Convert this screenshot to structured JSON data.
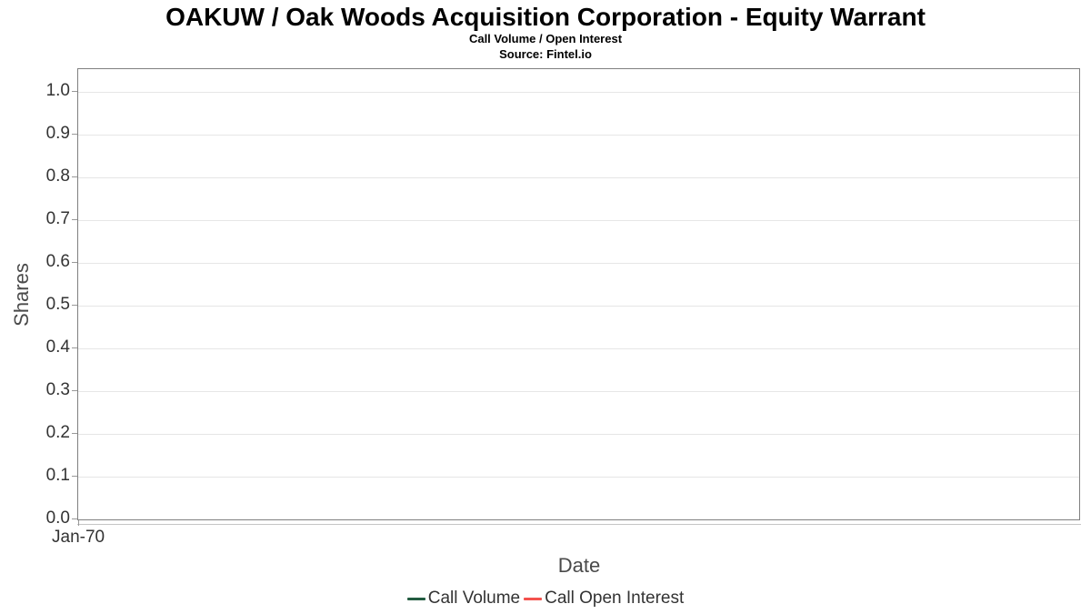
{
  "header": {
    "title": "OAKUW / Oak Woods Acquisition Corporation - Equity Warrant",
    "subtitle": "Call Volume / Open Interest",
    "source": "Source: Fintel.io"
  },
  "chart_data": {
    "type": "line",
    "title": "OAKUW / Oak Woods Acquisition Corporation - Equity Warrant",
    "subtitle": "Call Volume / Open Interest",
    "source": "Source: Fintel.io",
    "xlabel": "Date",
    "ylabel": "Shares",
    "x": [],
    "series": [
      {
        "name": "Call Volume",
        "color": "#235c41",
        "values": []
      },
      {
        "name": "Call Open Interest",
        "color": "#f4524d",
        "values": []
      }
    ],
    "ylim": [
      0.0,
      1.054
    ],
    "yticks": [
      {
        "v": 0.0,
        "label": "0.0"
      },
      {
        "v": 0.1,
        "label": "0.1"
      },
      {
        "v": 0.2,
        "label": "0.2"
      },
      {
        "v": 0.3,
        "label": "0.3"
      },
      {
        "v": 0.4,
        "label": "0.4"
      },
      {
        "v": 0.5,
        "label": "0.5"
      },
      {
        "v": 0.6,
        "label": "0.6"
      },
      {
        "v": 0.7,
        "label": "0.7"
      },
      {
        "v": 0.8,
        "label": "0.8"
      },
      {
        "v": 0.9,
        "label": "0.9"
      },
      {
        "v": 1.0,
        "label": "1.0"
      }
    ],
    "xticks": [
      {
        "pos": 0.001,
        "label": "Jan-70"
      }
    ],
    "grid": true,
    "legend_position": "bottom",
    "colors": {
      "plot_border": "#808080",
      "gridline": "#e6e6e6",
      "tick": "#999999",
      "tick_text": "#333333",
      "axis_title_text": "#4a4a4a"
    }
  }
}
